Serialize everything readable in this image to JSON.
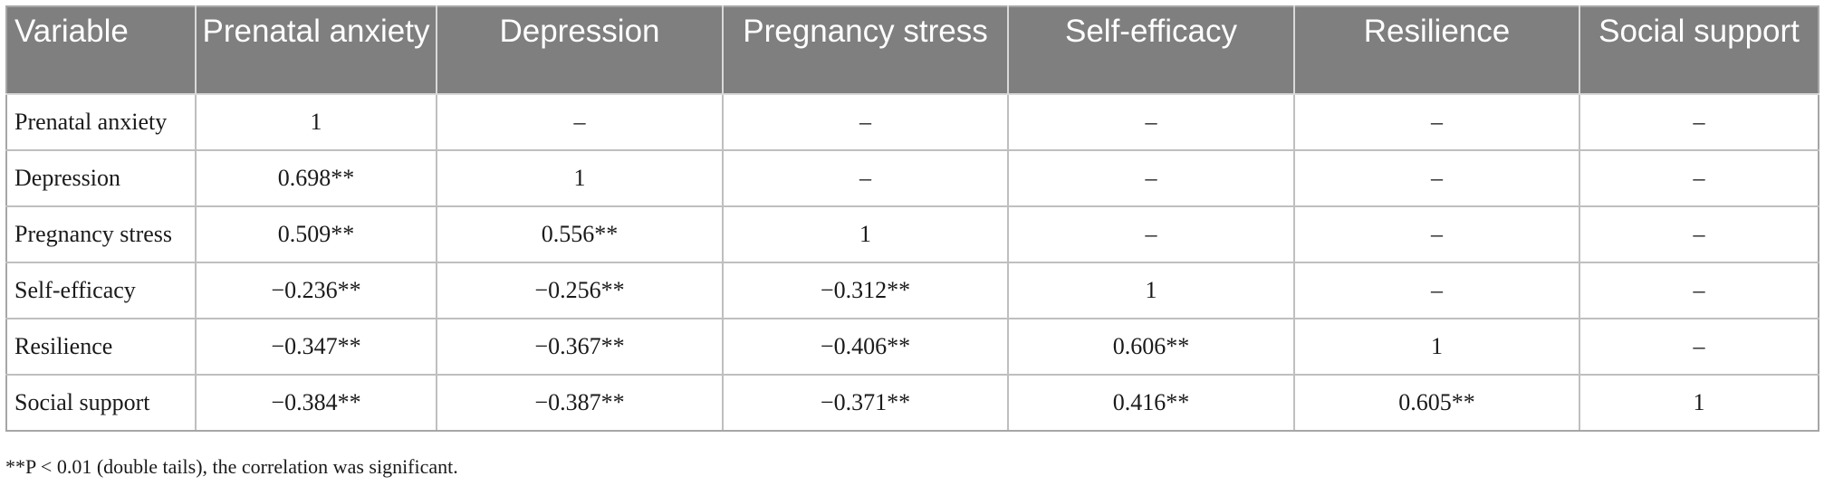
{
  "table": {
    "headers": [
      "Variable",
      "Prenatal anxiety",
      "Depression",
      "Pregnancy stress",
      "Self-efficacy",
      "Resilience",
      "Social support"
    ],
    "rows": [
      [
        "Prenatal anxiety",
        "1",
        "–",
        "–",
        "–",
        "–",
        "–"
      ],
      [
        "Depression",
        "0.698**",
        "1",
        "–",
        "–",
        "–",
        "–"
      ],
      [
        "Pregnancy stress",
        "0.509**",
        "0.556**",
        "1",
        "–",
        "–",
        "–"
      ],
      [
        "Self-efficacy",
        "−0.236**",
        "−0.256**",
        "−0.312**",
        "1",
        "–",
        "–"
      ],
      [
        "Resilience",
        "−0.347**",
        "−0.367**",
        "−0.406**",
        "0.606**",
        "1",
        "–"
      ],
      [
        "Social support",
        "−0.384**",
        "−0.387**",
        "−0.371**",
        "0.416**",
        "0.605**",
        "1"
      ]
    ]
  },
  "footnote": "**P < 0.01 (double tails), the correlation was significant."
}
